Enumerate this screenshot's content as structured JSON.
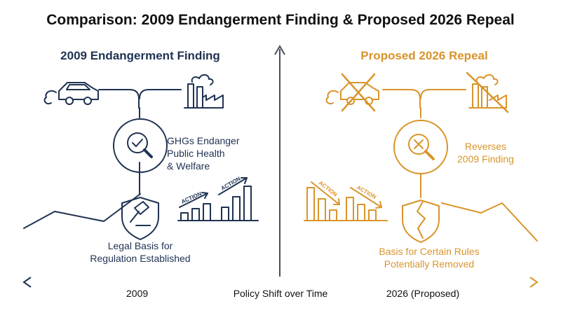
{
  "title": "Comparison: 2009 Endangerment Finding & Proposed 2026 Repeal",
  "left": {
    "heading": "2009 Endangerment Finding",
    "description_lines": [
      "GHGs Endanger",
      "Public Health",
      "& Welfare"
    ],
    "basis_lines": [
      "Legal Basis for",
      "Regulation Established"
    ],
    "action_tags": [
      "ACTION",
      "ACTION"
    ]
  },
  "right": {
    "heading": "Proposed 2026 Repeal",
    "description_lines": [
      "Reverses",
      "2009 Finding"
    ],
    "basis_lines": [
      "Basis for Certain Rules",
      "Potentially Removed"
    ],
    "action_tags": [
      "ACTION",
      "ACTION"
    ]
  },
  "axis": {
    "left_label": "2009",
    "center_label": "Policy Shift over Time",
    "right_label": "2026 (Proposed)"
  },
  "colors": {
    "navy": "#1f3252",
    "gold": "#d9942a",
    "axis_left": "#1f3252",
    "axis_right": "#d9942a"
  },
  "icons": {
    "left": [
      "car-icon",
      "factory-icon",
      "magnifier-check-icon",
      "gavel-shield-icon",
      "bar-chart-rising-icon"
    ],
    "right": [
      "crossed-car-icon",
      "crossed-factory-icon",
      "magnifier-x-icon",
      "broken-shield-icon",
      "bar-chart-falling-icon"
    ]
  }
}
